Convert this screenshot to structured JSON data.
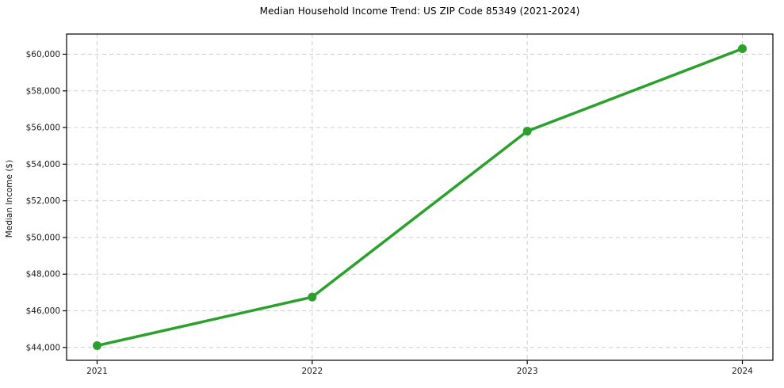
{
  "chart_data": {
    "type": "line",
    "title": "Median Household Income Trend: US ZIP Code 85349 (2021-2024)",
    "xlabel": "",
    "ylabel": "Median Income ($)",
    "categories": [
      "2021",
      "2022",
      "2023",
      "2024"
    ],
    "values": [
      44100,
      46750,
      55800,
      60300
    ],
    "y_ticks": {
      "values": [
        44000,
        46000,
        48000,
        50000,
        52000,
        54000,
        56000,
        58000,
        60000
      ],
      "labels": [
        "$44,000",
        "$46,000",
        "$48,000",
        "$50,000",
        "$52,000",
        "$54,000",
        "$56,000",
        "$58,000",
        "$60,000"
      ]
    },
    "ylim": [
      43300,
      61100
    ],
    "grid": true,
    "grid_style": "dashed",
    "grid_color": "#cccccc",
    "line_color": "#2ca02c",
    "marker": "circle",
    "legend": "none"
  }
}
